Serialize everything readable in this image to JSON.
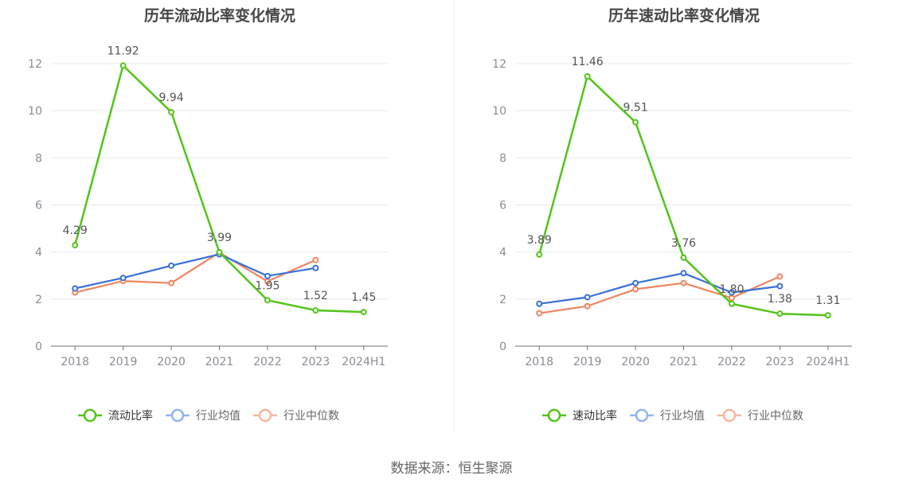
{
  "source_text": "数据来源：恒生聚源",
  "colors": {
    "primary": "#52c41a",
    "avg": "#3a6fd8",
    "median": "#ee8560",
    "avg_legend": "#94b4f0",
    "median_legend": "#f5b7a2",
    "grid": "#e6e9f2",
    "axis": "#6e7079",
    "tick_text": "#8a8d96",
    "title": "#464646",
    "value_label": "#555555",
    "divider": "#eeeeee"
  },
  "chart_data": [
    {
      "type": "line",
      "title": "历年流动比率变化情况",
      "categories": [
        "2018",
        "2019",
        "2020",
        "2021",
        "2022",
        "2023",
        "2024H1"
      ],
      "ylim": [
        0,
        12
      ],
      "yticks": [
        0,
        2,
        4,
        6,
        8,
        10,
        12
      ],
      "grid": true,
      "legend_position": "bottom",
      "series": [
        {
          "name": "流动比率",
          "values": [
            4.29,
            11.92,
            9.94,
            3.99,
            1.95,
            1.52,
            1.45
          ],
          "labels": [
            "4.29",
            "11.92",
            "9.94",
            "3.99",
            "1.95",
            "1.52",
            "1.45"
          ],
          "color_key": "primary",
          "legend_color_key": "primary"
        },
        {
          "name": "行业均值",
          "values": [
            2.45,
            2.9,
            3.42,
            3.9,
            2.98,
            3.32,
            null
          ],
          "color_key": "avg",
          "legend_color_key": "avg_legend"
        },
        {
          "name": "行业中位数",
          "values": [
            2.28,
            2.77,
            2.68,
            3.98,
            2.75,
            3.66,
            null
          ],
          "color_key": "median",
          "legend_color_key": "median_legend"
        }
      ]
    },
    {
      "type": "line",
      "title": "历年速动比率变化情况",
      "categories": [
        "2018",
        "2019",
        "2020",
        "2021",
        "2022",
        "2023",
        "2024H1"
      ],
      "ylim": [
        0,
        12
      ],
      "yticks": [
        0,
        2,
        4,
        6,
        8,
        10,
        12
      ],
      "grid": true,
      "legend_position": "bottom",
      "series": [
        {
          "name": "速动比率",
          "values": [
            3.89,
            11.46,
            9.51,
            3.76,
            1.8,
            1.38,
            1.31
          ],
          "labels": [
            "3.89",
            "11.46",
            "9.51",
            "3.76",
            "1.80",
            "1.38",
            "1.31"
          ],
          "color_key": "primary",
          "legend_color_key": "primary"
        },
        {
          "name": "行业均值",
          "values": [
            1.8,
            2.08,
            2.68,
            3.1,
            2.28,
            2.55,
            null
          ],
          "color_key": "avg",
          "legend_color_key": "avg_legend"
        },
        {
          "name": "行业中位数",
          "values": [
            1.4,
            1.7,
            2.42,
            2.68,
            2.05,
            2.96,
            null
          ],
          "color_key": "median",
          "legend_color_key": "median_legend"
        }
      ]
    }
  ]
}
